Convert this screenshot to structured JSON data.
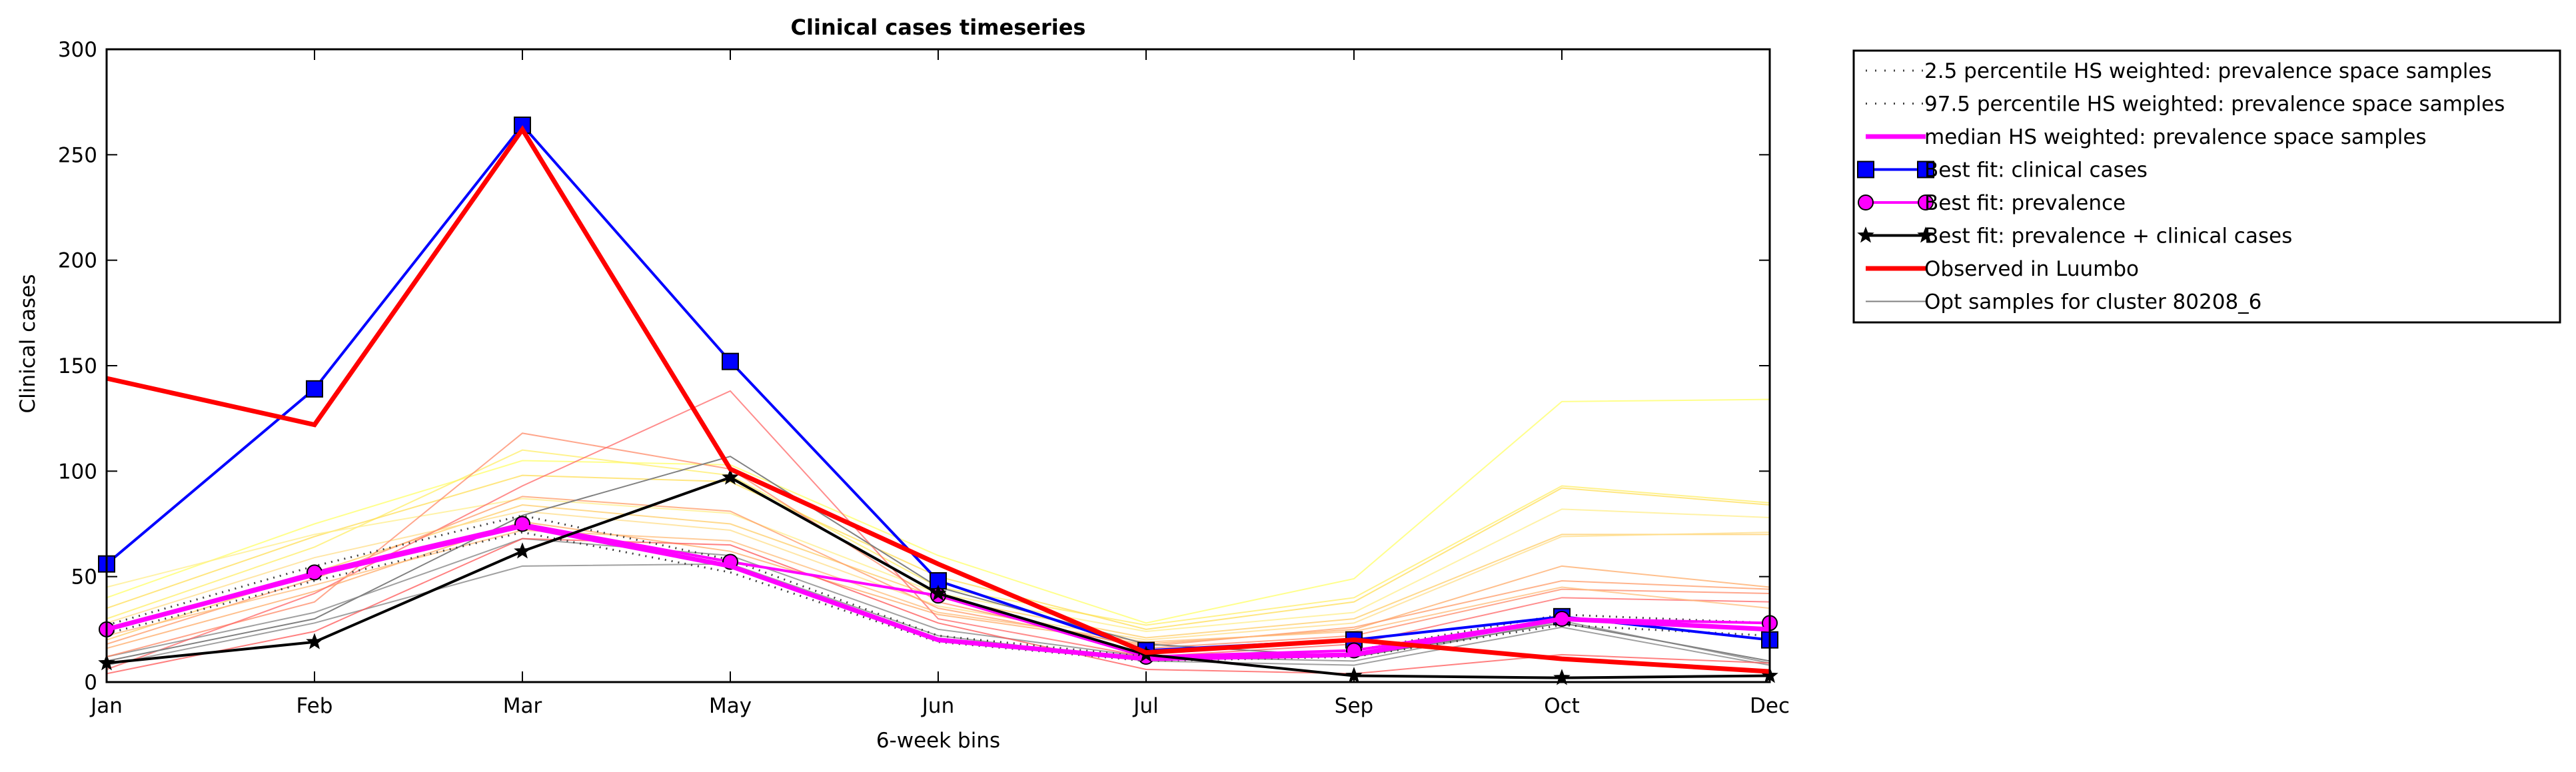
{
  "chart_data": {
    "type": "line",
    "title": "Clinical cases timeseries",
    "xlabel": "6-week bins",
    "ylabel": "Clinical cases",
    "categories": [
      "Jan",
      "Feb",
      "Mar",
      "May",
      "Jun",
      "Jul",
      "Sep",
      "Oct",
      "Dec"
    ],
    "ylim": [
      0,
      300
    ],
    "yticks": [
      "0",
      "50",
      "100",
      "150",
      "200",
      "250",
      "300"
    ],
    "grid": false,
    "legend_position": "outside-right-top",
    "series": [
      {
        "name": "2.5 percentile HS weighted: prevalence space samples",
        "color": "#404040",
        "style": "dotted",
        "values": [
          23,
          48,
          71,
          52,
          19,
          10,
          12,
          27,
          22
        ]
      },
      {
        "name": "97.5 percentile HS weighted: prevalence space samples",
        "color": "#404040",
        "style": "dotted",
        "values": [
          27,
          55,
          79,
          58,
          22,
          12,
          15,
          32,
          28
        ]
      },
      {
        "name": "median HS weighted: prevalence space samples",
        "color": "#ff00ff",
        "style": "solid-thick",
        "values": [
          25,
          51,
          74,
          55,
          20,
          11,
          13,
          30,
          25
        ]
      },
      {
        "name": "Best fit: clinical cases",
        "color": "#0000ff",
        "style": "square-marker",
        "values": [
          56,
          139,
          264,
          152,
          48,
          15,
          20,
          31,
          20
        ]
      },
      {
        "name": "Best fit: prevalence",
        "color": "#ff00ff",
        "style": "circle-marker",
        "values": [
          25,
          52,
          75,
          57,
          41,
          12,
          15,
          30,
          28
        ]
      },
      {
        "name": "Best fit: prevalence + clinical cases",
        "color": "#000000",
        "style": "star-marker",
        "values": [
          9,
          19,
          62,
          97,
          42,
          13,
          3,
          2,
          3
        ]
      },
      {
        "name": "Observed in Luumbo",
        "color": "#ff0000",
        "style": "solid-thick",
        "values": [
          144,
          122,
          262,
          101,
          56,
          14,
          20,
          11,
          5
        ]
      },
      {
        "name": "Opt samples for cluster 80208_6",
        "color": "#808080",
        "style": "thin",
        "values": [
          10,
          30,
          79,
          107,
          45,
          18,
          12,
          28,
          10
        ]
      }
    ],
    "samples": [
      {
        "color": "#808080",
        "values": [
          8,
          28,
          55,
          56,
          22,
          10,
          8,
          26,
          8
        ]
      },
      {
        "color": "#808080",
        "values": [
          12,
          33,
          68,
          60,
          25,
          12,
          10,
          29,
          9
        ]
      },
      {
        "color": "#ffff66",
        "values": [
          40,
          75,
          105,
          103,
          60,
          28,
          49,
          133,
          134
        ]
      },
      {
        "color": "#ffee66",
        "values": [
          30,
          64,
          110,
          98,
          45,
          27,
          40,
          93,
          85
        ]
      },
      {
        "color": "#ffdd55",
        "values": [
          35,
          69,
          98,
          95,
          50,
          25,
          38,
          92,
          84
        ]
      },
      {
        "color": "#ffee88",
        "values": [
          45,
          70,
          87,
          80,
          42,
          24,
          33,
          82,
          78
        ]
      },
      {
        "color": "#ffcc66",
        "values": [
          20,
          52,
          84,
          75,
          40,
          21,
          30,
          70,
          70
        ]
      },
      {
        "color": "#ffdd88",
        "values": [
          28,
          59,
          81,
          72,
          36,
          20,
          28,
          69,
          71
        ]
      },
      {
        "color": "#ffaa66",
        "values": [
          16,
          43,
          76,
          62,
          32,
          18,
          25,
          55,
          45
        ]
      },
      {
        "color": "#ff8866",
        "values": [
          12,
          38,
          118,
          101,
          38,
          16,
          22,
          44,
          42
        ]
      },
      {
        "color": "#ff6666",
        "values": [
          6,
          42,
          93,
          138,
          30,
          12,
          18,
          40,
          38
        ]
      },
      {
        "color": "#ff9966",
        "values": [
          18,
          49,
          88,
          81,
          35,
          17,
          26,
          48,
          44
        ]
      },
      {
        "color": "#ff5555",
        "values": [
          4,
          24,
          68,
          65,
          28,
          6,
          4,
          13,
          9
        ]
      },
      {
        "color": "#ffbb77",
        "values": [
          22,
          46,
          72,
          67,
          33,
          19,
          24,
          45,
          35
        ]
      }
    ]
  }
}
